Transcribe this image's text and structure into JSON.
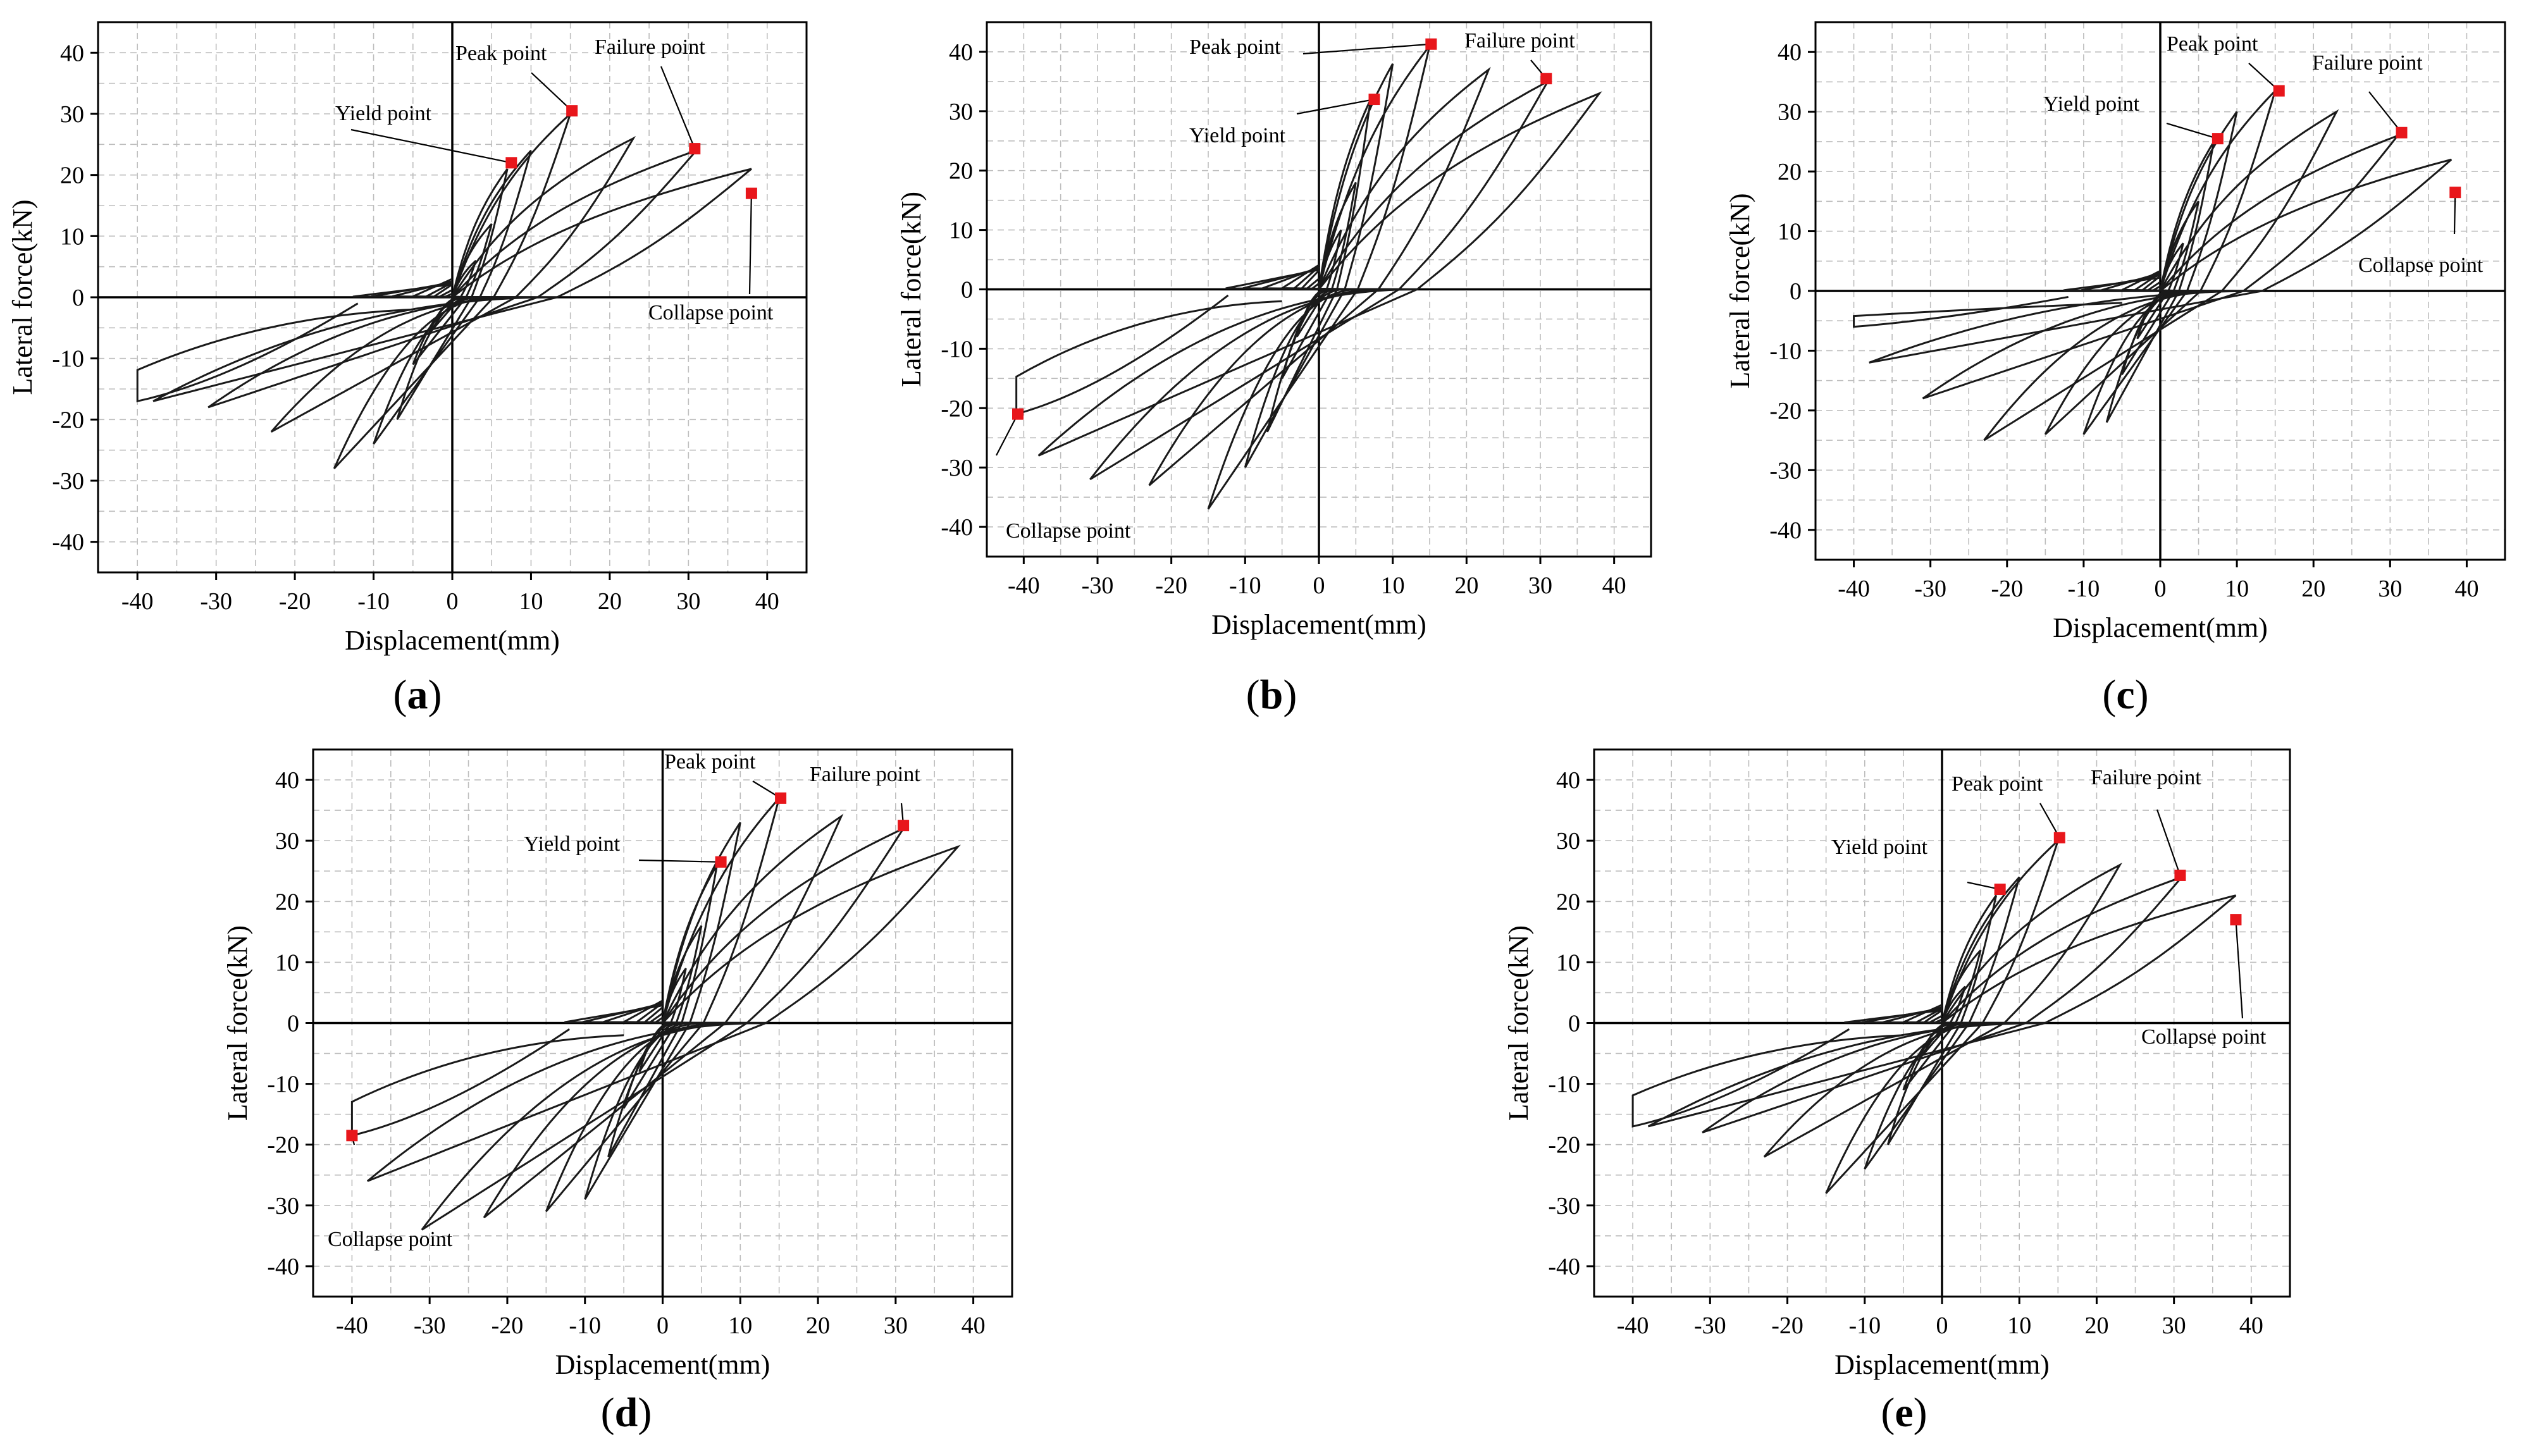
{
  "chart_data": [
    {
      "id": "a",
      "type": "line",
      "panel_label": "a",
      "title": "",
      "xlabel": "Displacement(mm)",
      "ylabel": "Lateral force(kN)",
      "xlim": [
        -45,
        45
      ],
      "ylim": [
        -45,
        45
      ],
      "xticks": [
        -40,
        -30,
        -20,
        -10,
        0,
        10,
        20,
        30,
        40
      ],
      "yticks": [
        -40,
        -30,
        -20,
        -10,
        0,
        10,
        20,
        30,
        40
      ],
      "grid": true,
      "cycles": [
        [
          3,
          6,
          -6
        ],
        [
          5,
          12,
          -11
        ],
        [
          7,
          21,
          -20
        ],
        [
          10,
          24,
          -24
        ],
        [
          15,
          30,
          -28
        ],
        [
          23,
          26,
          -22
        ],
        [
          31,
          24,
          -18
        ],
        [
          38,
          21,
          -17
        ],
        [
          -40,
          0,
          -17
        ]
      ],
      "key_points": [
        {
          "name": "Yield point",
          "x": 7.5,
          "y": 22
        },
        {
          "name": "Peak point",
          "x": 15.2,
          "y": 30.5
        },
        {
          "name": "Failure point",
          "x": 30.8,
          "y": 24.3
        },
        {
          "name": "Collapse point",
          "x": 38,
          "y": 17
        }
      ]
    },
    {
      "id": "b",
      "type": "line",
      "panel_label": "b",
      "title": "",
      "xlabel": "Displacement(mm)",
      "ylabel": "Lateral force(kN)",
      "xlim": [
        -45,
        45
      ],
      "ylim": [
        -45,
        45
      ],
      "xticks": [
        -40,
        -30,
        -20,
        -10,
        0,
        10,
        20,
        30,
        40
      ],
      "yticks": [
        -40,
        -30,
        -20,
        -10,
        0,
        10,
        20,
        30,
        40
      ],
      "grid": true,
      "cycles": [
        [
          3,
          10,
          -8
        ],
        [
          5,
          18,
          -15
        ],
        [
          7,
          32,
          -24
        ],
        [
          10,
          38,
          -30
        ],
        [
          15,
          41,
          -37
        ],
        [
          23,
          37,
          -33
        ],
        [
          31,
          35,
          -32
        ],
        [
          38,
          33,
          -28
        ],
        [
          -41,
          0,
          -21
        ]
      ],
      "key_points": [
        {
          "name": "Yield point",
          "x": 7.5,
          "y": 32
        },
        {
          "name": "Peak point",
          "x": 15.2,
          "y": 41.3
        },
        {
          "name": "Failure point",
          "x": 30.8,
          "y": 35.5
        },
        {
          "name": "Collapse point",
          "x": -40.8,
          "y": -21
        }
      ]
    },
    {
      "id": "c",
      "type": "line",
      "panel_label": "c",
      "title": "",
      "xlabel": "Displacement(mm)",
      "ylabel": "Lateral force(kN)",
      "xlim": [
        -45,
        45
      ],
      "ylim": [
        -45,
        45
      ],
      "xticks": [
        -40,
        -30,
        -20,
        -10,
        0,
        10,
        20,
        30,
        40
      ],
      "yticks": [
        -40,
        -30,
        -20,
        -10,
        0,
        10,
        20,
        30,
        40
      ],
      "grid": true,
      "cycles": [
        [
          3,
          8,
          -8
        ],
        [
          5,
          15,
          -14
        ],
        [
          7,
          25,
          -22
        ],
        [
          10,
          30,
          -24
        ],
        [
          15,
          33.5,
          -24
        ],
        [
          23,
          30,
          -25
        ],
        [
          31,
          26,
          -18
        ],
        [
          38,
          22,
          -12
        ],
        [
          -40,
          0,
          -6
        ]
      ],
      "key_points": [
        {
          "name": "Yield point",
          "x": 7.5,
          "y": 25.5
        },
        {
          "name": "Peak point",
          "x": 15.5,
          "y": 33.5
        },
        {
          "name": "Failure point",
          "x": 31.5,
          "y": 26.5
        },
        {
          "name": "Collapse point",
          "x": 38.5,
          "y": 16.5
        }
      ]
    },
    {
      "id": "d",
      "type": "line",
      "panel_label": "d",
      "title": "",
      "xlabel": "Displacement(mm)",
      "ylabel": "Lateral force(kN)",
      "xlim": [
        -45,
        45
      ],
      "ylim": [
        -45,
        45
      ],
      "xticks": [
        -40,
        -30,
        -20,
        -10,
        0,
        10,
        20,
        30,
        40
      ],
      "yticks": [
        -40,
        -30,
        -20,
        -10,
        0,
        10,
        20,
        30,
        40
      ],
      "grid": true,
      "cycles": [
        [
          3,
          9,
          -8
        ],
        [
          5,
          16,
          -14
        ],
        [
          7,
          26,
          -22
        ],
        [
          10,
          33,
          -29
        ],
        [
          15,
          37,
          -31
        ],
        [
          23,
          34,
          -32
        ],
        [
          31,
          32,
          -34
        ],
        [
          38,
          29,
          -26
        ],
        [
          -40,
          0,
          -18.5
        ]
      ],
      "key_points": [
        {
          "name": "Yield point",
          "x": 7.5,
          "y": 26.5
        },
        {
          "name": "Peak point",
          "x": 15.2,
          "y": 37
        },
        {
          "name": "Failure point",
          "x": 31,
          "y": 32.5
        },
        {
          "name": "Collapse point",
          "x": -40,
          "y": -18.5
        }
      ]
    },
    {
      "id": "e",
      "type": "line",
      "panel_label": "e",
      "title": "",
      "xlabel": "Displacement(mm)",
      "ylabel": "Lateral force(kN)",
      "xlim": [
        -45,
        45
      ],
      "ylim": [
        -45,
        45
      ],
      "xticks": [
        -40,
        -30,
        -20,
        -10,
        0,
        10,
        20,
        30,
        40
      ],
      "yticks": [
        -40,
        -30,
        -20,
        -10,
        0,
        10,
        20,
        30,
        40
      ],
      "grid": true,
      "cycles": [
        [
          3,
          6,
          -6
        ],
        [
          5,
          12,
          -11
        ],
        [
          7,
          21,
          -20
        ],
        [
          10,
          24,
          -24
        ],
        [
          15,
          30,
          -28
        ],
        [
          23,
          26,
          -22
        ],
        [
          31,
          24,
          -18
        ],
        [
          38,
          21,
          -17
        ],
        [
          -40,
          0,
          -17
        ]
      ],
      "key_points": [
        {
          "name": "Yield point",
          "x": 7.5,
          "y": 22
        },
        {
          "name": "Peak point",
          "x": 15.2,
          "y": 30.5
        },
        {
          "name": "Failure point",
          "x": 30.8,
          "y": 24.3
        },
        {
          "name": "Collapse point",
          "x": 38,
          "y": 17
        }
      ]
    }
  ],
  "style": {
    "curve_color": "#1a1a1a",
    "marker_color": "#e8161b",
    "grid_color": "#bdbdbd",
    "axis_color": "#000000"
  }
}
